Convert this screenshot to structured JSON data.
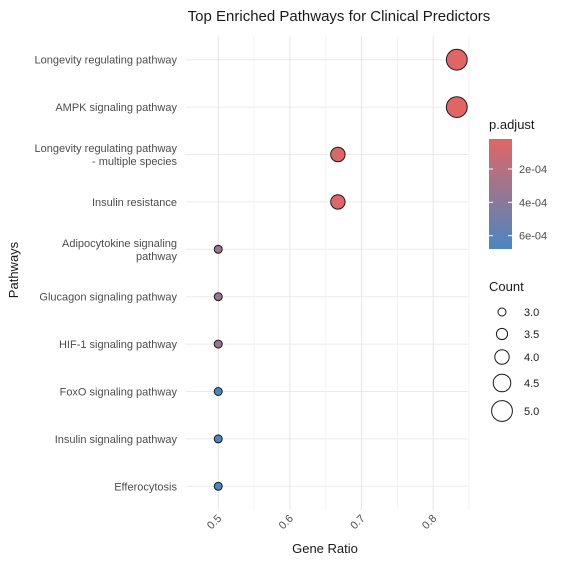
{
  "chart_data": {
    "type": "scatter",
    "title": "Top Enriched Pathways for Clinical Predictors",
    "xlabel": "Gene Ratio",
    "ylabel": "Pathways",
    "xlim": [
      0.455,
      0.85
    ],
    "xticks": [
      0.5,
      0.6,
      0.7,
      0.8
    ],
    "xtick_labels": [
      "0.5",
      "0.6",
      "0.7",
      "0.8"
    ],
    "grid": true,
    "points": [
      {
        "pathway": [
          "Longevity regulating pathway"
        ],
        "gene_ratio": 0.833,
        "count": 5,
        "p_adjust": 2e-05
      },
      {
        "pathway": [
          "AMPK signaling pathway"
        ],
        "gene_ratio": 0.833,
        "count": 5,
        "p_adjust": 2e-05
      },
      {
        "pathway": [
          "Longevity regulating pathway",
          "- multiple species"
        ],
        "gene_ratio": 0.667,
        "count": 4,
        "p_adjust": 4e-05
      },
      {
        "pathway": [
          "Insulin resistance"
        ],
        "gene_ratio": 0.667,
        "count": 4,
        "p_adjust": 4e-05
      },
      {
        "pathway": [
          "Adipocytokine signaling",
          "pathway"
        ],
        "gene_ratio": 0.5,
        "count": 3,
        "p_adjust": 0.00035
      },
      {
        "pathway": [
          "Glucagon signaling pathway"
        ],
        "gene_ratio": 0.5,
        "count": 3,
        "p_adjust": 0.00035
      },
      {
        "pathway": [
          "HIF-1 signaling pathway"
        ],
        "gene_ratio": 0.5,
        "count": 3,
        "p_adjust": 0.00035
      },
      {
        "pathway": [
          "FoxO signaling pathway"
        ],
        "gene_ratio": 0.5,
        "count": 3,
        "p_adjust": 0.00068
      },
      {
        "pathway": [
          "Insulin signaling pathway"
        ],
        "gene_ratio": 0.5,
        "count": 3,
        "p_adjust": 0.00068
      },
      {
        "pathway": [
          "Efferocytosis"
        ],
        "gene_ratio": 0.5,
        "count": 3,
        "p_adjust": 0.00068
      }
    ],
    "color_legend": {
      "title": "p.adjust",
      "range": [
        2e-05,
        0.00068
      ],
      "ticks": [
        0.0002,
        0.0004,
        0.0006
      ],
      "tick_labels": [
        "2e-04",
        "4e-04",
        "6e-04"
      ],
      "low_color": "#e06666",
      "high_color": "#4a87c1"
    },
    "size_legend": {
      "title": "Count",
      "values": [
        3.0,
        3.5,
        4.0,
        4.5,
        5.0
      ],
      "labels": [
        "3.0",
        "3.5",
        "4.0",
        "4.5",
        "5.0"
      ]
    },
    "legend_position": "right"
  }
}
